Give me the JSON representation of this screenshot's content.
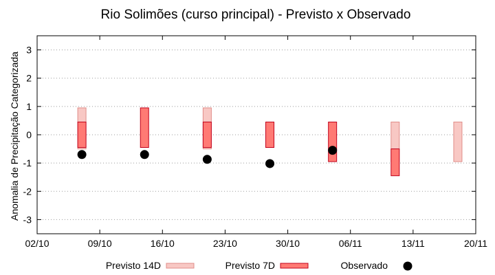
{
  "chart_data": {
    "type": "range-bar",
    "title": "Rio Solimões (curso principal) - Previsto x Observado",
    "xlabel": "",
    "ylabel": "Anomalia de Precipitação Categorizada",
    "ylim": [
      -3.5,
      3.5
    ],
    "yticks": [
      3,
      2,
      1,
      0,
      -1,
      -2,
      -3
    ],
    "xlim": [
      "2023-10-02",
      "2023-11-20"
    ],
    "xtick_labels": [
      "02/10",
      "09/10",
      "16/10",
      "23/10",
      "30/10",
      "06/11",
      "13/11",
      "20/11"
    ],
    "xtick_dates": [
      "2023-10-02",
      "2023-10-09",
      "2023-10-16",
      "2023-10-23",
      "2023-10-30",
      "2023-11-06",
      "2023-11-13",
      "2023-11-20"
    ],
    "grid": "horizontal dotted",
    "legend_placement": "bottom",
    "series": [
      {
        "name": "Previsto 14D",
        "color_fill": "#f8c8c4",
        "color_edge": "#e08c88",
        "points": [
          {
            "x": "2023-10-07",
            "low": -0.5,
            "high": 0.95
          },
          {
            "x": "2023-10-21",
            "low": -0.5,
            "high": 0.95
          },
          {
            "x": "2023-11-11",
            "low": -0.95,
            "high": 0.45
          },
          {
            "x": "2023-11-18",
            "low": -0.95,
            "high": 0.45
          }
        ]
      },
      {
        "name": "Previsto 7D",
        "color_fill": "#ff7a74",
        "color_edge": "#c0001a",
        "points": [
          {
            "x": "2023-10-07",
            "low": -0.45,
            "high": 0.45
          },
          {
            "x": "2023-10-14",
            "low": -0.45,
            "high": 0.95
          },
          {
            "x": "2023-10-21",
            "low": -0.45,
            "high": 0.45
          },
          {
            "x": "2023-10-28",
            "low": -0.45,
            "high": 0.45
          },
          {
            "x": "2023-11-04",
            "low": -0.95,
            "high": 0.45
          },
          {
            "x": "2023-11-11",
            "low": -1.45,
            "high": -0.5
          }
        ]
      },
      {
        "name": "Observado",
        "color_fill": "#000000",
        "points": [
          {
            "x": "2023-10-07",
            "y": -0.7
          },
          {
            "x": "2023-10-14",
            "y": -0.7
          },
          {
            "x": "2023-10-21",
            "y": -0.87
          },
          {
            "x": "2023-10-28",
            "y": -1.02
          },
          {
            "x": "2023-11-04",
            "y": -0.55
          }
        ]
      }
    ]
  }
}
